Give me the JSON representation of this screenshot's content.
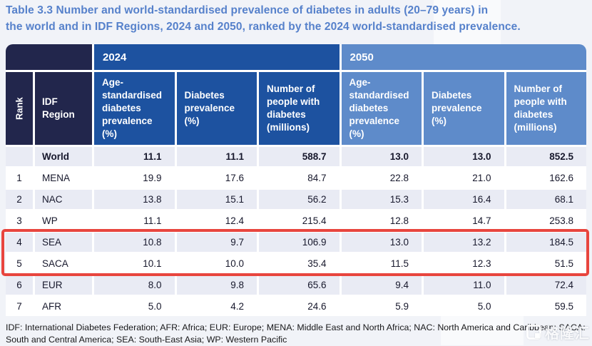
{
  "title_line1": "Table 3.3 Number and world-standardised prevalence of diabetes in adults (20–79 years) in",
  "title_line2": "the world and in IDF Regions, 2024 and 2050, ranked by the 2024 world-standardised prevalence.",
  "chart_data": {
    "type": "table",
    "title": "Table 3.3 Number and world-standardised prevalence of diabetes in adults (20–79 years) in the world and in IDF Regions, 2024 and 2050, ranked by the 2024 world-standardised prevalence.",
    "corner": {
      "rank_label": "Rank",
      "region_label": "IDF Region"
    },
    "year_groups": [
      "2024",
      "2050"
    ],
    "sub_columns": [
      "Age-standardised diabetes prevalence (%)",
      "Diabetes prevalence (%)",
      "Number of people with diabetes (millions)"
    ],
    "rows": [
      {
        "rank": "",
        "region": "World",
        "bold": true,
        "highlighted": false,
        "values_2024": [
          "11.1",
          "11.1",
          "588.7"
        ],
        "values_2050": [
          "13.0",
          "13.0",
          "852.5"
        ]
      },
      {
        "rank": "1",
        "region": "MENA",
        "bold": false,
        "highlighted": false,
        "values_2024": [
          "19.9",
          "17.6",
          "84.7"
        ],
        "values_2050": [
          "22.8",
          "21.0",
          "162.6"
        ]
      },
      {
        "rank": "2",
        "region": "NAC",
        "bold": false,
        "highlighted": false,
        "values_2024": [
          "13.8",
          "15.1",
          "56.2"
        ],
        "values_2050": [
          "15.3",
          "16.4",
          "68.1"
        ]
      },
      {
        "rank": "3",
        "region": "WP",
        "bold": false,
        "highlighted": false,
        "values_2024": [
          "11.1",
          "12.4",
          "215.4"
        ],
        "values_2050": [
          "12.8",
          "14.7",
          "253.8"
        ]
      },
      {
        "rank": "4",
        "region": "SEA",
        "bold": false,
        "highlighted": true,
        "values_2024": [
          "10.8",
          "9.7",
          "106.9"
        ],
        "values_2050": [
          "13.0",
          "13.2",
          "184.5"
        ]
      },
      {
        "rank": "5",
        "region": "SACA",
        "bold": false,
        "highlighted": true,
        "values_2024": [
          "10.1",
          "10.0",
          "35.4"
        ],
        "values_2050": [
          "11.5",
          "12.3",
          "51.5"
        ]
      },
      {
        "rank": "6",
        "region": "EUR",
        "bold": false,
        "highlighted": false,
        "values_2024": [
          "8.0",
          "9.8",
          "65.6"
        ],
        "values_2050": [
          "9.4",
          "11.0",
          "72.4"
        ]
      },
      {
        "rank": "7",
        "region": "AFR",
        "bold": false,
        "highlighted": false,
        "values_2024": [
          "5.0",
          "4.2",
          "24.6"
        ],
        "values_2050": [
          "5.9",
          "5.0",
          "59.5"
        ]
      }
    ]
  },
  "footnote": {
    "line1": "IDF: International Diabetes Federation; AFR: Africa; EUR: Europe; MENA: Middle East and North Africa; NAC: North America and Caribbean; SACA:",
    "line2": "South and Central America; SEA: South-East Asia; WP: Western Pacific"
  },
  "watermark": {
    "text": "格隆汇"
  },
  "colors": {
    "title_blue": "#5681cb",
    "header_navy": "#22264c",
    "header_blue_2024": "#1d52a0",
    "header_blue_2050": "#5e8bca",
    "row_gray": "#e9ebf4",
    "highlight_red": "#e8453e"
  }
}
